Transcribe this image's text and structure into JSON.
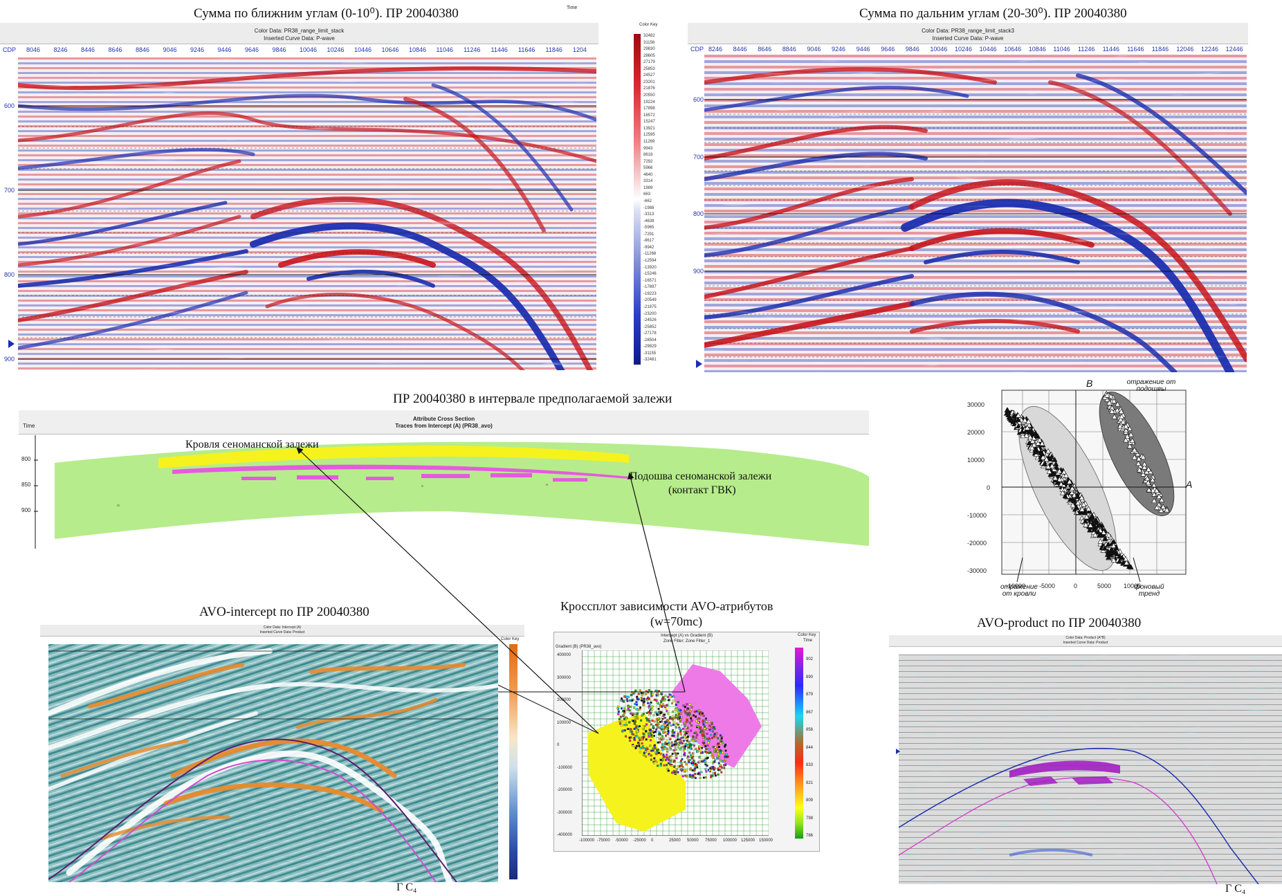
{
  "titles": {
    "near": "Сумма по ближним углам (0-10⁰). ПР 20040380",
    "far": "Сумма по дальним углам (20-30⁰). ПР 20040380",
    "interval": "ПР 20040380 в интервале предполагаемой залежи",
    "intercept": "AVO-intercept по ПР 20040380",
    "crossplot1": "Кроссплот зависимости AVO-атрибутов",
    "crossplot2": "(w=70mc)",
    "product": "AVO-product по ПР 20040380"
  },
  "near_section": {
    "header1": "Color Data: PR38_range_limit_stack",
    "header2": "Inserted Curve Data:  P-wave",
    "cdp_label": "CDP",
    "cdp_ticks": [
      "8046",
      "8246",
      "8446",
      "8646",
      "8846",
      "9046",
      "9246",
      "9446",
      "9646",
      "9846",
      "10046",
      "10246",
      "10446",
      "10646",
      "10846",
      "11046",
      "11246",
      "11446",
      "11646",
      "11846",
      "1204"
    ],
    "time_ticks": [
      "600",
      "700",
      "800",
      "900"
    ],
    "time_label": "Time"
  },
  "far_section": {
    "header1": "Color Data: PR38_range_limit_stack3",
    "header2": "Inserted Curve Data:  P-wave",
    "cdp_label": "CDP",
    "cdp_ticks": [
      "8246",
      "8446",
      "8646",
      "8846",
      "9046",
      "9246",
      "9446",
      "9646",
      "9846",
      "10046",
      "10246",
      "10446",
      "10646",
      "10846",
      "11046",
      "11246",
      "11446",
      "11646",
      "11846",
      "12046",
      "12246",
      "12446"
    ],
    "time_ticks": [
      "600",
      "700",
      "800",
      "900"
    ]
  },
  "color_key": {
    "title": "Color Key",
    "values": [
      "32482",
      "31156",
      "29830",
      "28605",
      "27179",
      "25853",
      "24527",
      "23201",
      "21876",
      "20550",
      "19224",
      "17898",
      "16572",
      "15247",
      "13921",
      "12595",
      "11269",
      "9943",
      "8618",
      "7292",
      "5966",
      "4640",
      "3314",
      "1989",
      "663",
      "-662",
      "-1988",
      "-3313",
      "-4639",
      "-5965",
      "-7291",
      "-8617",
      "-9942",
      "-11268",
      "-12594",
      "-13920",
      "-15246",
      "-16571",
      "-17897",
      "-19223",
      "-20549",
      "-21875",
      "-23200",
      "-24526",
      "-25852",
      "-27178",
      "-28504",
      "-29829",
      "-31155",
      "-32481"
    ]
  },
  "attribute_section": {
    "header1": "Attribute Cross Section",
    "header2": "Traces from Intercept (A) (PR38_avo)",
    "time_label": "Time",
    "time_ticks": [
      "800",
      "850",
      "900"
    ],
    "roof_label": "Кровля сеноманской залежи",
    "base_label1": "Подошва сеноманской залежи",
    "base_label2": "(контакт ГВК)"
  },
  "reference_plot": {
    "y_ticks": [
      "30000",
      "20000",
      "10000",
      "0",
      "-10000",
      "-20000",
      "-30000"
    ],
    "x_ticks": [
      "-10000",
      "-5000",
      "0",
      "5000",
      "10000"
    ],
    "label_b": "B",
    "label_a": "A",
    "base_reflection": "отражение от подошвы",
    "top_reflection": "отражение от кровли",
    "background_trend": "фоновый тренд"
  },
  "intercept_section": {
    "header1": "Color Data: Intercept (A)",
    "header2": "Inserted Curve Data: Product",
    "color_key_title": "Color Key",
    "footer": "Г  С₄"
  },
  "crossplot": {
    "header1": "Intercept (A) vs Gradient (B)",
    "header2": "Zone Filter: Zone Filter_1",
    "y_axis_label": "Gradient (B) (PR38_avo)",
    "y_ticks": [
      "400000",
      "300000",
      "200000",
      "100000",
      "0",
      "-100000",
      "-200000",
      "-300000",
      "-400000"
    ],
    "x_ticks": [
      "-100000",
      "-75000",
      "-50000",
      "-25000",
      "0",
      "25000",
      "50000",
      "75000",
      "100000",
      "125000",
      "150000"
    ],
    "legend_title": "Color Key",
    "legend_sub": "Time",
    "legend_values": [
      "902",
      "890",
      "879",
      "867",
      "856",
      "844",
      "833",
      "821",
      "809",
      "798",
      "786"
    ]
  },
  "product_section": {
    "header1": "Color Data: Product (A*B)",
    "header2": "Inserted Curve Data: Product",
    "footer": "Г  С₄"
  },
  "colors": {
    "red": "#c8151b",
    "blue": "#1c2fb0",
    "light_green": "#b6ec8c",
    "yellow": "#f6f21e",
    "magenta": "#e45be0",
    "orange": "#e98a2c",
    "teal": "#5fa6a8"
  }
}
